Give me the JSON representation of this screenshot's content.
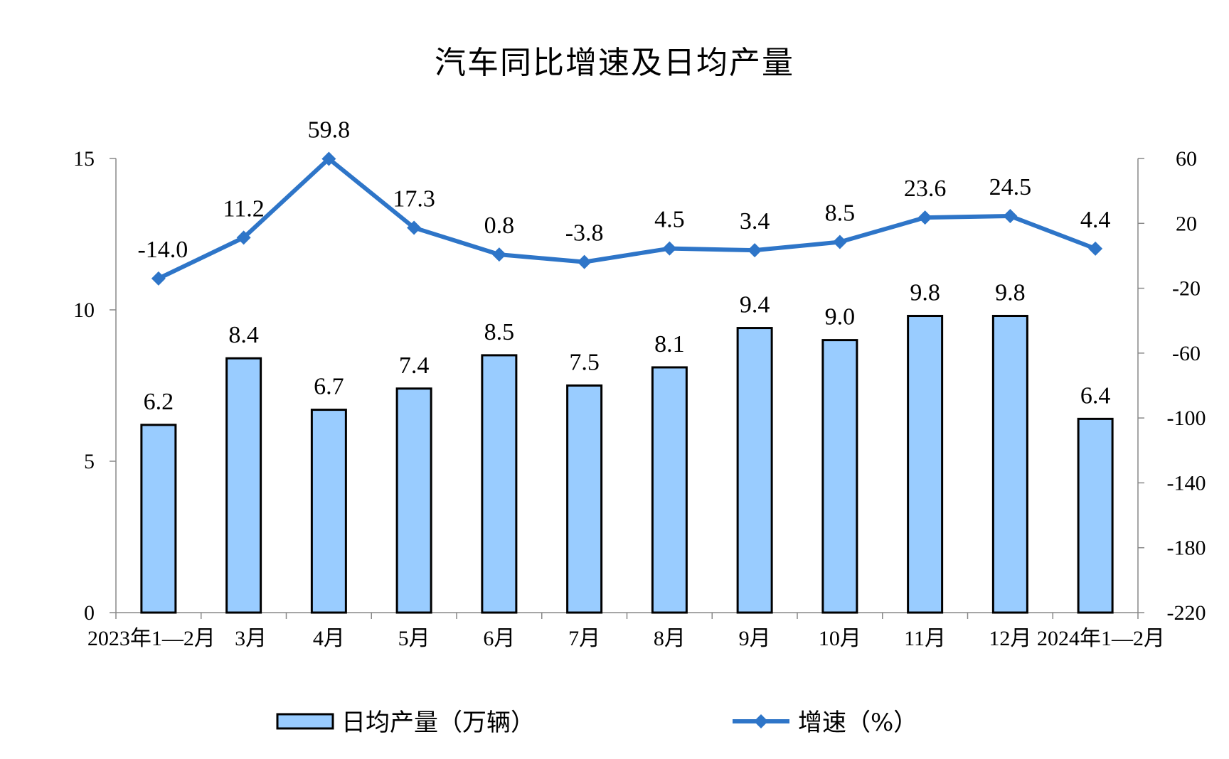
{
  "chart_data": {
    "type": "bar",
    "title": "汽车同比增速及日均产量",
    "categories": [
      "2023年1—2月",
      "3月",
      "4月",
      "5月",
      "6月",
      "7月",
      "8月",
      "9月",
      "10月",
      "11月",
      "12月",
      "2024年1—2月"
    ],
    "series": [
      {
        "name": "日均产量（万辆）",
        "type": "bar",
        "axis": "left",
        "color": "#99ccff",
        "values": [
          6.2,
          8.4,
          6.7,
          7.4,
          8.5,
          7.5,
          8.1,
          9.4,
          9.0,
          9.8,
          9.8,
          6.4
        ],
        "labels": [
          "6.2",
          "8.4",
          "6.7",
          "7.4",
          "8.5",
          "7.5",
          "8.1",
          "9.4",
          "9.0",
          "9.8",
          "9.8",
          "6.4"
        ]
      },
      {
        "name": "增速（%）",
        "type": "line",
        "axis": "right",
        "color": "#2e75c8",
        "marker": "diamond",
        "values": [
          -14.0,
          11.2,
          59.8,
          17.3,
          0.8,
          -3.8,
          4.5,
          3.4,
          8.5,
          23.6,
          24.5,
          4.4
        ],
        "labels": [
          "-14.0",
          "11.2",
          "59.8",
          "17.3",
          "0.8",
          "-3.8",
          "4.5",
          "3.4",
          "8.5",
          "23.6",
          "24.5",
          "4.4"
        ]
      }
    ],
    "y_left": {
      "min": 0,
      "max": 15,
      "ticks": [
        0,
        5,
        10,
        15
      ]
    },
    "y_right": {
      "min": -220,
      "max": 60,
      "ticks": [
        -220,
        -180,
        -140,
        -100,
        -60,
        -20,
        20,
        60
      ]
    },
    "grid": false,
    "legend_position": "bottom"
  }
}
